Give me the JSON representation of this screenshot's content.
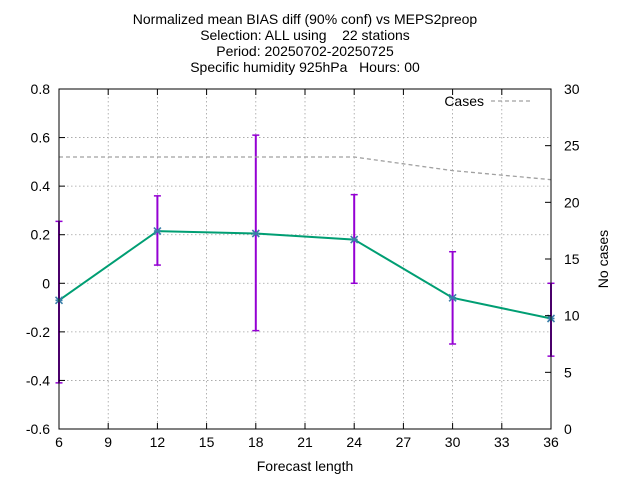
{
  "chart_data": {
    "type": "line",
    "title_lines": [
      "Normalized mean BIAS diff (90% conf) vs MEPS2preop",
      "Selection: ALL using    22 stations",
      "Period: 20250702-20250725",
      "Specific humidity 925hPa   Hours: 00"
    ],
    "xlabel": "Forecast length",
    "ylabel": "",
    "y2label": "No cases",
    "xlim": [
      6,
      36
    ],
    "ylim": [
      -0.6,
      0.8
    ],
    "y2lim": [
      0,
      30
    ],
    "xticks": [
      6,
      9,
      12,
      15,
      18,
      21,
      24,
      27,
      30,
      33,
      36
    ],
    "yticks": [
      -0.6,
      -0.4,
      -0.2,
      0,
      0.2,
      0.4,
      0.6,
      0.8
    ],
    "ytick_labels": [
      "-0.6",
      "-0.4",
      "-0.2",
      "0",
      "0.2",
      "0.4",
      "0.6",
      "0.8"
    ],
    "y2ticks": [
      0,
      5,
      10,
      15,
      20,
      25,
      30
    ],
    "grid": true,
    "legend_position": "top-right",
    "series": [
      {
        "x": [
          6,
          12,
          18,
          24,
          30,
          36
        ],
        "y": [
          -0.07,
          0.215,
          0.205,
          0.18,
          -0.06,
          -0.145
        ],
        "err_low": [
          -0.41,
          0.075,
          -0.195,
          0.0,
          -0.25,
          -0.3
        ],
        "err_high": [
          0.255,
          0.36,
          0.61,
          0.365,
          0.13,
          0.0
        ],
        "axis": "y1",
        "style": "line-points-errorbars",
        "color": "#009e73",
        "errorbar_color": "#9400d3"
      },
      {
        "name": "Cases",
        "x": [
          6,
          12,
          18,
          24,
          30,
          36
        ],
        "y": [
          24,
          24,
          24,
          24,
          22.8,
          22
        ],
        "axis": "y2",
        "style": "dashed",
        "color": "#a0a0a0"
      }
    ]
  }
}
